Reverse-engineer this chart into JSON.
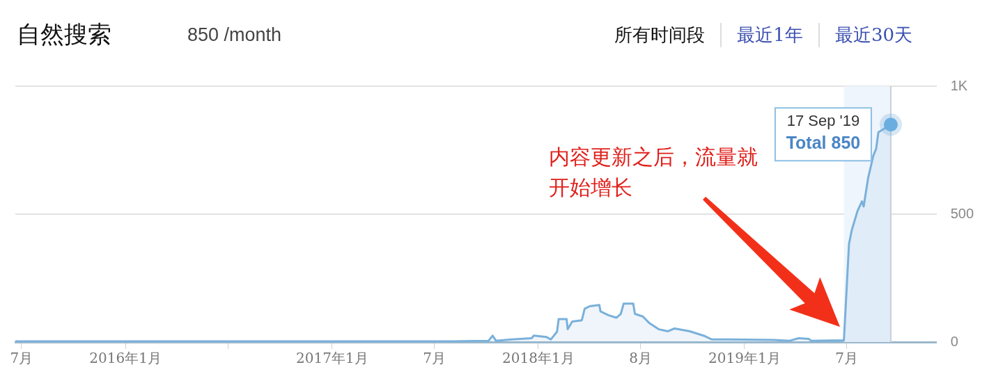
{
  "chart_data": {
    "type": "area",
    "title": "自然搜索",
    "subtitle": "850 /month",
    "x": [
      "2015-06-20",
      "2017-08-01",
      "2017-10-05",
      "2017-10-12",
      "2017-10-18",
      "2017-11-15",
      "2017-12-20",
      "2017-12-24",
      "2018-01-15",
      "2018-01-23",
      "2018-02-03",
      "2018-02-06",
      "2018-02-20",
      "2018-02-22",
      "2018-03-02",
      "2018-03-19",
      "2018-03-24",
      "2018-04-02",
      "2018-04-19",
      "2018-04-21",
      "2018-05-05",
      "2018-05-19",
      "2018-05-27",
      "2018-06-01",
      "2018-06-18",
      "2018-06-21",
      "2018-07-05",
      "2018-07-16",
      "2018-08-02",
      "2018-08-18",
      "2018-08-30",
      "2018-09-26",
      "2018-10-23",
      "2018-11-04",
      "2018-12-02",
      "2019-02-22",
      "2019-03-22",
      "2019-04-07",
      "2019-04-25",
      "2019-04-29",
      "2019-06-26",
      "2019-07-05",
      "2019-07-10",
      "2019-07-20",
      "2019-07-28",
      "2019-07-31",
      "2019-08-08",
      "2019-08-12",
      "2019-08-17",
      "2019-08-22",
      "2019-08-26",
      "2019-09-17"
    ],
    "series": [
      {
        "color": "#7ab0da",
        "values": [
          3,
          3,
          5,
          25,
          5,
          10,
          15,
          25,
          20,
          10,
          40,
          90,
          90,
          50,
          80,
          85,
          130,
          140,
          145,
          120,
          105,
          95,
          110,
          150,
          150,
          110,
          100,
          75,
          50,
          42,
          53,
          42,
          23,
          10,
          10,
          8,
          5,
          15,
          12,
          5,
          7,
          383,
          438,
          512,
          550,
          530,
          643,
          680,
          728,
          755,
          820,
          850
        ]
      }
    ],
    "xlim": [
      "2015-06-20",
      "2019-12-07"
    ],
    "xticks": [
      {
        "value": "2015-07",
        "label": "7月"
      },
      {
        "value": "2016-01",
        "label": "2016年1月"
      },
      {
        "value": "2016-07",
        "label": null
      },
      {
        "value": "2017-01",
        "label": "2017年1月"
      },
      {
        "value": "2017-07",
        "label": "7月"
      },
      {
        "value": "2018-01",
        "label": "2018年1月"
      },
      {
        "value": "2018-07",
        "label": "8月"
      },
      {
        "value": "2019-01",
        "label": "2019年1月"
      },
      {
        "value": "2019-07",
        "label": "7月"
      }
    ],
    "ylim": [
      0,
      1000
    ],
    "yticks": [
      0,
      500,
      {
        "value": 1000,
        "label": "1K"
      }
    ],
    "grid": "y",
    "bands": [
      {
        "axis": "x",
        "from": "2019-06-26",
        "to": "2019-09-17",
        "color": "#eef5fc"
      }
    ],
    "ref_lines": [
      {
        "axis": "x",
        "value": "2019-09-17",
        "color": "#c8d0d8"
      }
    ],
    "annotations": [
      "所有时间段",
      "最近1年",
      "最近30天",
      "内容更新之后，流量就开始增长",
      {
        "text": "17 Sep '19",
        "x": "2019-09-17",
        "y": 850
      },
      {
        "text": "Total 850",
        "x": "2019-09-17",
        "y": 850
      }
    ]
  }
}
